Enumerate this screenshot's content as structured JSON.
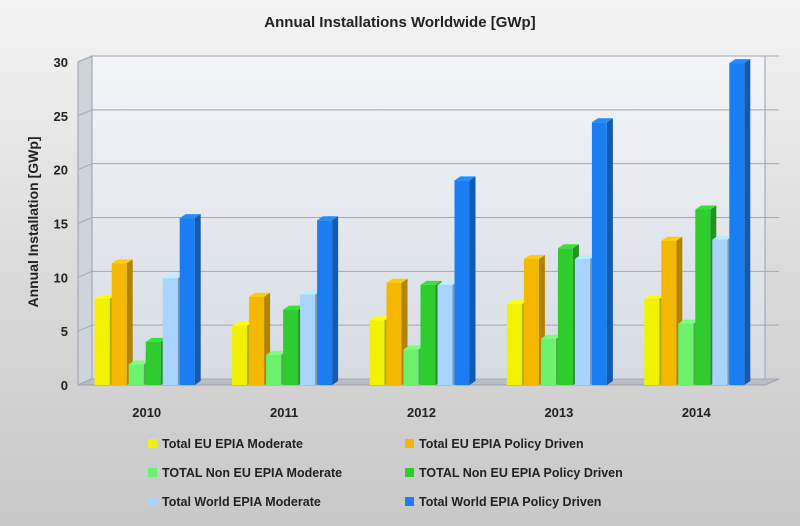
{
  "chart_data": {
    "type": "bar",
    "title": "Annual Installations Worldwide [GWp]",
    "xlabel": "",
    "ylabel": "Annual Installation [GWp]",
    "ylim": [
      0,
      30
    ],
    "yticks": [
      "0",
      "5",
      "10",
      "15",
      "20",
      "25",
      "30"
    ],
    "categories": [
      "2010",
      "2011",
      "2012",
      "2013",
      "2014"
    ],
    "grid": true,
    "legend_position": "bottom",
    "series": [
      {
        "name": "Total EU EPIA Moderate",
        "color": "#f2f200",
        "values": [
          8.0,
          5.5,
          6.0,
          7.5,
          8.0
        ]
      },
      {
        "name": "Total EU EPIA Policy Driven",
        "color": "#f5b800",
        "values": [
          11.3,
          8.2,
          9.5,
          11.7,
          13.4
        ]
      },
      {
        "name": "TOTAL Non EU EPIA Moderate",
        "color": "#6cf26c",
        "values": [
          1.9,
          2.8,
          3.3,
          4.3,
          5.7
        ]
      },
      {
        "name": "TOTAL Non EU EPIA Policy Driven",
        "color": "#2ecc2e",
        "values": [
          4.0,
          7.0,
          9.3,
          12.7,
          16.3
        ]
      },
      {
        "name": "Total World EPIA Moderate",
        "color": "#a8d4ff",
        "values": [
          9.9,
          8.4,
          9.3,
          11.7,
          13.5
        ]
      },
      {
        "name": "Total World EPIA Policy Driven",
        "color": "#1a7ef2",
        "values": [
          15.5,
          15.3,
          19.0,
          24.4,
          29.9
        ]
      }
    ]
  }
}
